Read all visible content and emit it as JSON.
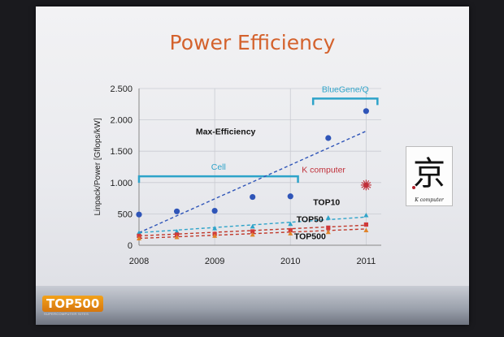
{
  "slide": {
    "title": "Power Efficiency",
    "logo_text": "TOP500",
    "logo_subtext": "SUPERCOMPUTER SITES"
  },
  "kcomputer_image": {
    "glyph": "京",
    "label": "K computer"
  },
  "chart_data": {
    "type": "scatter",
    "title": "Power Efficiency",
    "xlabel": "",
    "ylabel": "Linpack/Power  [Gflops/kW]",
    "xlim": [
      2008,
      2011.2
    ],
    "ylim": [
      0,
      2500
    ],
    "xticks": [
      {
        "value": 2008,
        "label": "2008"
      },
      {
        "value": 2009,
        "label": "2009"
      },
      {
        "value": 2010,
        "label": "2010"
      },
      {
        "value": 2011,
        "label": "2011"
      }
    ],
    "yticks": [
      {
        "value": 0,
        "label": "0"
      },
      {
        "value": 500,
        "label": "500"
      },
      {
        "value": 1000,
        "label": "1.000"
      },
      {
        "value": 1500,
        "label": "1.500"
      },
      {
        "value": 2000,
        "label": "2.000"
      },
      {
        "value": 2500,
        "label": "2.500"
      }
    ],
    "grid": true,
    "series": [
      {
        "name": "Max-Efficiency",
        "color": "#2f55b8",
        "marker": "circle",
        "points": [
          {
            "x": 2008.0,
            "y": 490
          },
          {
            "x": 2008.5,
            "y": 540
          },
          {
            "x": 2009.0,
            "y": 550
          },
          {
            "x": 2009.5,
            "y": 770
          },
          {
            "x": 2010.0,
            "y": 780
          },
          {
            "x": 2010.5,
            "y": 1710
          },
          {
            "x": 2011.0,
            "y": 2140
          }
        ],
        "trend": [
          {
            "x": 2008.0,
            "y": 200
          },
          {
            "x": 2011.0,
            "y": 1820
          }
        ],
        "trend_color": "#2f55b8"
      },
      {
        "name": "TOP10",
        "color": "#2ea3c9",
        "marker": "triangle",
        "points": [
          {
            "x": 2008.0,
            "y": 200
          },
          {
            "x": 2008.5,
            "y": 220
          },
          {
            "x": 2009.0,
            "y": 270
          },
          {
            "x": 2009.5,
            "y": 300
          },
          {
            "x": 2010.0,
            "y": 340
          },
          {
            "x": 2010.5,
            "y": 440
          },
          {
            "x": 2011.0,
            "y": 480
          }
        ],
        "trend": [
          {
            "x": 2008.0,
            "y": 200
          },
          {
            "x": 2011.0,
            "y": 450
          }
        ],
        "trend_color": "#2ea3c9"
      },
      {
        "name": "TOP50",
        "color": "#d03a3a",
        "marker": "square",
        "points": [
          {
            "x": 2008.0,
            "y": 150
          },
          {
            "x": 2008.5,
            "y": 170
          },
          {
            "x": 2009.0,
            "y": 180
          },
          {
            "x": 2009.5,
            "y": 220
          },
          {
            "x": 2010.0,
            "y": 240
          },
          {
            "x": 2010.5,
            "y": 280
          },
          {
            "x": 2011.0,
            "y": 330
          }
        ],
        "trend": [
          {
            "x": 2008.0,
            "y": 150
          },
          {
            "x": 2011.0,
            "y": 320
          }
        ],
        "trend_color": "#c0392b"
      },
      {
        "name": "TOP500",
        "color": "#e0832a",
        "marker": "triangle",
        "points": [
          {
            "x": 2008.0,
            "y": 110
          },
          {
            "x": 2008.5,
            "y": 130
          },
          {
            "x": 2009.0,
            "y": 150
          },
          {
            "x": 2009.5,
            "y": 170
          },
          {
            "x": 2010.0,
            "y": 190
          },
          {
            "x": 2010.5,
            "y": 210
          },
          {
            "x": 2011.0,
            "y": 240
          }
        ],
        "trend": [
          {
            "x": 2008.0,
            "y": 110
          },
          {
            "x": 2011.0,
            "y": 260
          }
        ],
        "trend_color": "#c0392b"
      }
    ],
    "highlight": {
      "name": "K computer",
      "x": 2011.0,
      "y": 960,
      "color": "#c0303a"
    },
    "brackets": [
      {
        "label": "Cell",
        "x_start": 2008.0,
        "x_end": 2010.1,
        "y": 1100,
        "color": "#2ea3c9"
      },
      {
        "label": "BlueGene/Q",
        "x_start": 2010.3,
        "x_end": 2011.15,
        "y": 2340,
        "color": "#2ea3c9"
      }
    ],
    "annotations": [
      {
        "text": "Max-Efficiency",
        "x": 2008.75,
        "y": 1770,
        "color": "#111111"
      },
      {
        "text": "K computer",
        "x": 2010.15,
        "y": 1160,
        "color": "#c0303a"
      },
      {
        "text": "TOP10",
        "x": 2010.3,
        "y": 640,
        "color": "#111111"
      },
      {
        "text": "TOP50",
        "x": 2010.08,
        "y": 370,
        "color": "#111111"
      },
      {
        "text": "TOP500",
        "x": 2010.05,
        "y": 100,
        "color": "#111111"
      }
    ]
  }
}
